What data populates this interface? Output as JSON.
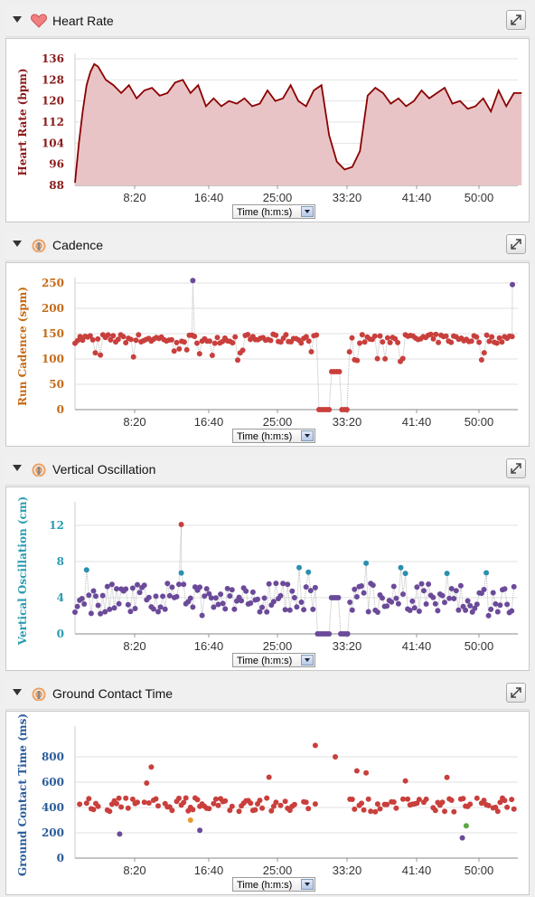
{
  "panels": [
    {
      "key": "hr",
      "title": "Heart Rate",
      "icon": "heart-icon",
      "time_select": "Time (h:m:s)"
    },
    {
      "key": "cad",
      "title": "Cadence",
      "icon": "running-activity-icon",
      "time_select": "Time (h:m:s)"
    },
    {
      "key": "vo",
      "title": "Vertical Oscillation",
      "icon": "running-activity-icon",
      "time_select": "Time (h:m:s)"
    },
    {
      "key": "gct",
      "title": "Ground Contact Time",
      "icon": "running-activity-icon",
      "time_select": "Time (h:m:s)"
    }
  ],
  "colors": {
    "hr_line": "#8b0000",
    "hr_fill": "#e9c4c6",
    "red": "#c93f3c",
    "purple": "#6b4a9a",
    "teal": "#2a8fb0",
    "green": "#5aa843",
    "orange": "#e89a2c",
    "cad_axis": "#c56a16",
    "vo_axis": "#2a9db0",
    "gct_axis": "#2b5c9a"
  },
  "chart_data": [
    {
      "type": "area",
      "name": "Heart Rate",
      "ylabel": "Heart Rate (bpm)",
      "ylim": [
        88,
        136
      ],
      "yticks": [
        88,
        96,
        104,
        112,
        120,
        128,
        136
      ],
      "xticks": [
        "8:20",
        "16:40",
        "25:00",
        "33:20",
        "41:40",
        "50:00"
      ],
      "x_minutes": [
        0,
        0.5,
        1,
        1.5,
        2,
        2.5,
        3,
        4,
        5,
        6,
        7,
        8,
        9,
        10,
        11,
        12,
        13,
        14,
        15,
        16,
        17,
        18,
        19,
        20,
        21,
        22,
        23,
        24,
        25,
        26,
        27,
        28,
        29,
        30,
        31,
        32,
        33,
        34,
        35,
        36,
        37,
        38,
        39,
        40,
        41,
        42,
        43,
        44,
        45,
        46,
        47,
        48,
        49,
        50,
        51,
        52,
        53,
        54,
        55,
        56,
        57,
        58
      ],
      "values": [
        89,
        104,
        116,
        126,
        131,
        134,
        133,
        128,
        126,
        123,
        126,
        121,
        124,
        125,
        122,
        123,
        127,
        128,
        123,
        126,
        118,
        121,
        118,
        120,
        119,
        121,
        118,
        119,
        124,
        120,
        121,
        126,
        120,
        118,
        124,
        126,
        107,
        97,
        94,
        95,
        101,
        122,
        125,
        123,
        119,
        121,
        118,
        120,
        124,
        121,
        123,
        125,
        119,
        120,
        117,
        118,
        121,
        116,
        124,
        118,
        123,
        123
      ]
    },
    {
      "type": "scatter",
      "name": "Cadence",
      "ylabel": "Run Cadence (spm)",
      "ylim": [
        0,
        250
      ],
      "yticks": [
        0,
        50,
        100,
        150,
        200,
        250
      ],
      "xticks": [
        "8:20",
        "16:40",
        "25:00",
        "33:20",
        "41:40",
        "50:00"
      ]
    },
    {
      "type": "scatter",
      "name": "Vertical Oscillation",
      "ylabel": "Vertical Oscillation (cm)",
      "ylim": [
        0,
        14
      ],
      "yticks": [
        0,
        4,
        8,
        12
      ],
      "xticks": [
        "8:20",
        "16:40",
        "25:00",
        "33:20",
        "41:40",
        "50:00"
      ]
    },
    {
      "type": "scatter",
      "name": "Ground Contact Time",
      "ylabel": "Ground Contact Time (ms)",
      "ylim": [
        0,
        1000
      ],
      "yticks": [
        0,
        200,
        400,
        600,
        800
      ],
      "xticks": [
        "8:20",
        "16:40",
        "25:00",
        "33:20",
        "41:40",
        "50:00"
      ]
    }
  ]
}
